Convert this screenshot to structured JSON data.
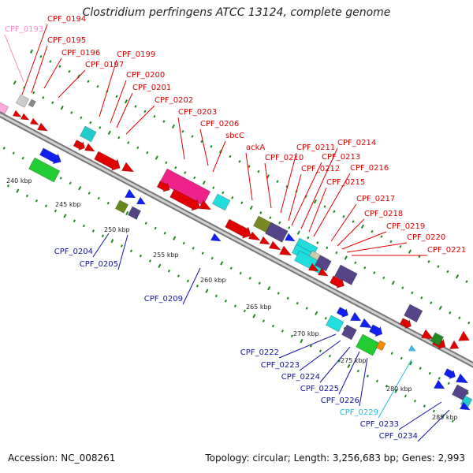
{
  "title": "Clostridium perfringens ATCC 13124, complete genome",
  "footer": {
    "accession": "Accession: NC_008261",
    "summary": "Topology: circular; Length: 3,256,683 bp; Genes: 2,993"
  },
  "colors": {
    "forward_label": "#e00000",
    "reverse_label": "#1010a0",
    "special_pink": "#ff88cc",
    "special_cyan": "#22bbdd",
    "backbone": "#a0a0a0",
    "ticks": "#1a8a1a"
  },
  "kbp_labels": [
    "240 kbp",
    "245 kbp",
    "250 kbp",
    "255 kbp",
    "260 kbp",
    "265 kbp",
    "270 kbp",
    "275 kbp",
    "280 kbp",
    "285 kbp"
  ],
  "forward_genes": [
    "CPF_0194",
    "CPF_0195",
    "CPF_0196",
    "CPF_0197",
    "CPF_0199",
    "CPF_0200",
    "CPF_0201",
    "CPF_0202",
    "CPF_0203",
    "CPF_0206",
    "sbcC",
    "ackA",
    "CPF_0210",
    "CPF_0211",
    "CPF_0212",
    "CPF_0213",
    "CPF_0214",
    "CPF_0215",
    "CPF_0216",
    "CPF_0217",
    "CPF_0218",
    "CPF_0219",
    "CPF_0220",
    "CPF_0221"
  ],
  "reverse_genes": [
    "CPF_0204",
    "CPF_0205",
    "CPF_0209",
    "CPF_0222",
    "CPF_0223",
    "CPF_0224",
    "CPF_0225",
    "CPF_0226",
    "CPF_0229",
    "CPF_0233",
    "CPF_0234"
  ],
  "special_genes": [
    "CPF_0193"
  ]
}
